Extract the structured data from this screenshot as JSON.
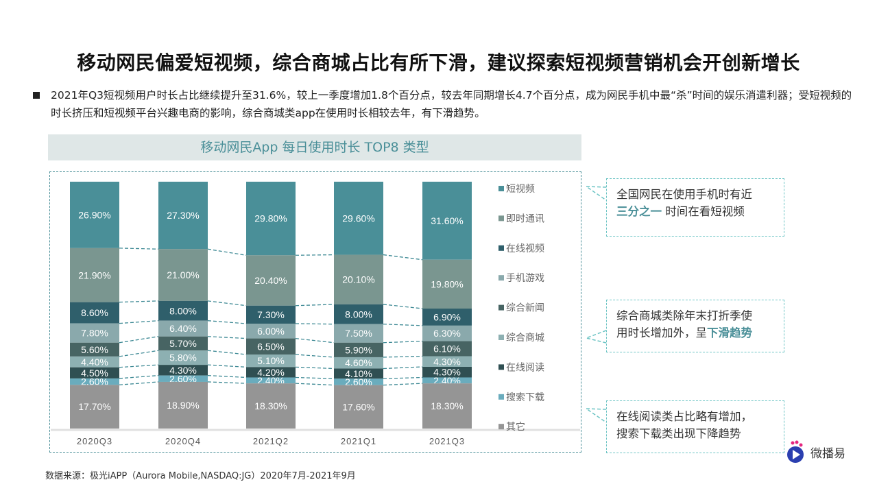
{
  "title": "移动网民偏爱短视频，综合商城占比有所下滑，建议探索短视频营销机会开创新增长",
  "bullet": "2021年Q3短视频用户时长占比继续提升至31.6%，较上一季度增加1.8个百分点，较去年同期增长4.7个百分点，成为网民手机中最“杀”时间的娱乐消遣利器；受短视频的时长挤压和短视频平台兴趣电商的影响，综合商城类app在使用时长相较去年，有下滑趋势。",
  "chart_data": {
    "type": "bar",
    "stacked": true,
    "title": "移动网民App 每日使用时长 TOP8 类型",
    "categories": [
      "2020Q3",
      "2020Q4",
      "2021Q2",
      "2021Q1",
      "2021Q3"
    ],
    "ylim": [
      0,
      100
    ],
    "legend_position": "right",
    "series": [
      {
        "name": "短视频",
        "color": "#4a8f98",
        "values": [
          26.9,
          27.3,
          29.8,
          29.6,
          31.6
        ]
      },
      {
        "name": "即时通讯",
        "color": "#7a9690",
        "values": [
          21.9,
          21.0,
          20.4,
          20.1,
          19.8
        ]
      },
      {
        "name": "在线视频",
        "color": "#2f5f6b",
        "values": [
          8.6,
          8.0,
          7.3,
          8.0,
          6.9
        ]
      },
      {
        "name": "手机游戏",
        "color": "#8aa9ac",
        "values": [
          7.8,
          6.4,
          6.0,
          7.5,
          6.3
        ]
      },
      {
        "name": "综合新闻",
        "color": "#476463",
        "values": [
          5.6,
          5.7,
          6.5,
          5.9,
          6.1
        ]
      },
      {
        "name": "综合商城",
        "color": "#8db0b2",
        "values": [
          4.4,
          5.8,
          5.1,
          4.6,
          4.3
        ]
      },
      {
        "name": "在线阅读",
        "color": "#2f4f52",
        "values": [
          4.5,
          4.3,
          4.2,
          4.1,
          4.3
        ]
      },
      {
        "name": "搜索下载",
        "color": "#6aacbd",
        "values": [
          2.6,
          2.6,
          2.4,
          2.6,
          2.4
        ]
      },
      {
        "name": "其它",
        "color": "#959595",
        "values": [
          17.7,
          18.9,
          18.3,
          17.6,
          18.3
        ]
      }
    ]
  },
  "callouts": [
    {
      "line1": "全国网民在使用手机时有近",
      "hl": "三分之一",
      "rest": " 时间在看短视频"
    },
    {
      "line1": "综合商城类除年末打折季使",
      "pre": "用时长增加外，呈",
      "hl": "下滑趋势"
    },
    {
      "line1": "在线阅读类占比略有增加，",
      "line2": "搜索下载类出现下降趋势"
    }
  ],
  "source": "数据来源：极光iAPP（Aurora Mobile,NASDAQ:JG）2020年7月-2021年9月",
  "logo": "微播易"
}
